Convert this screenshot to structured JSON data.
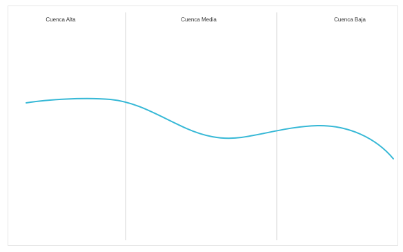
{
  "zones": [
    {
      "label": "Cuenca Alta"
    },
    {
      "label": "Cuenca Media"
    },
    {
      "label": "Cuenca Baja"
    }
  ],
  "colors": {
    "river": "#36b8d6",
    "divider": "#d6d6d6",
    "frame": "#e6e6e6",
    "label": "#333333"
  }
}
